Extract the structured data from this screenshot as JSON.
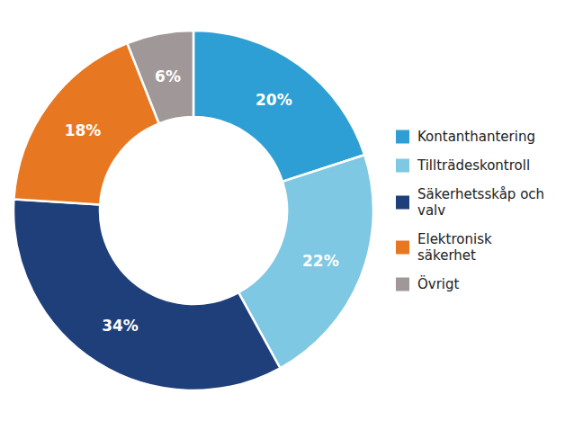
{
  "chart_data": {
    "type": "donut",
    "categories": [
      "Kontanthantering",
      "Tillträdeskontroll",
      "Säkerhetsskåp och\nvalv",
      "Elektronisk\nsäkerhet",
      "Övrigt"
    ],
    "values": [
      20,
      22,
      34,
      18,
      6
    ],
    "value_labels": [
      "20%",
      "22%",
      "34%",
      "18%",
      "6%"
    ],
    "colors": [
      "#2e9fd4",
      "#7ec8e3",
      "#1f3f7a",
      "#e87722",
      "#a09898"
    ]
  }
}
